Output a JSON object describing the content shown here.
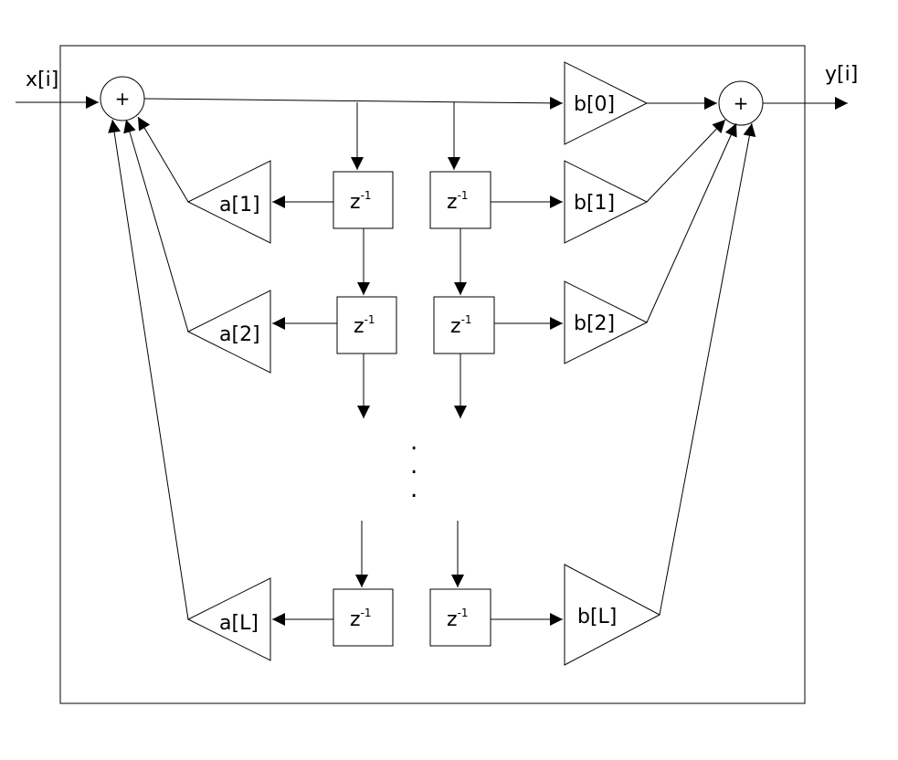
{
  "io": {
    "input": "x[i]",
    "output": "y[i]"
  },
  "adders": {
    "symbol": "+"
  },
  "feedback_gains": [
    "a[1]",
    "a[2]",
    "a[L]"
  ],
  "feedforward_gains": [
    "b[0]",
    "b[1]",
    "b[2]",
    "b[L]"
  ],
  "delay": {
    "base": "z",
    "exponent": "-1"
  },
  "ellipsis": [
    ".",
    ".",
    "."
  ]
}
